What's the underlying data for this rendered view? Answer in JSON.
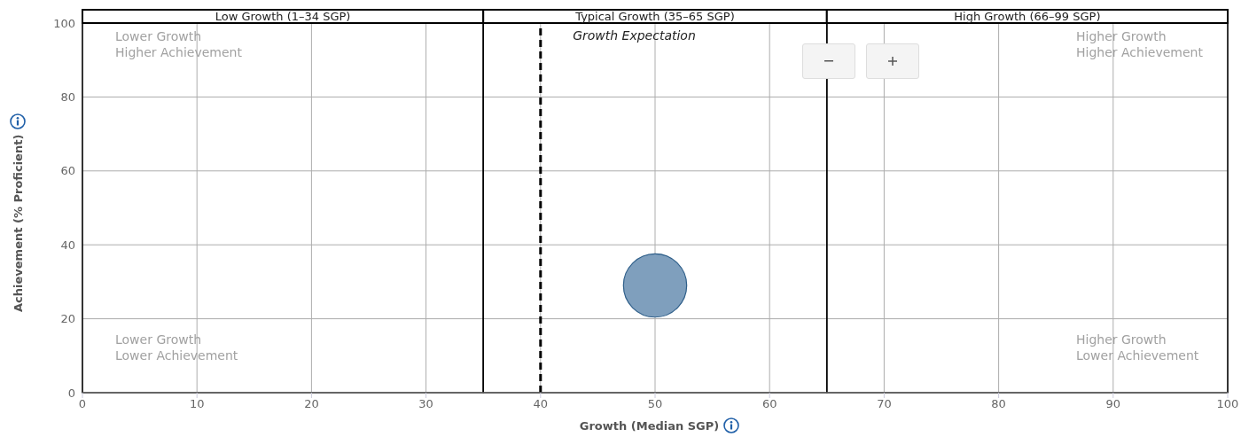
{
  "chart_data": {
    "type": "bubble",
    "xlabel": "Growth (Median SGP)",
    "ylabel": "Achievement (% Proficient)",
    "series": [
      {
        "color": "#7f9fbd",
        "x": [
          50
        ],
        "values": [
          29
        ],
        "sizes": [
          1
        ]
      }
    ],
    "xlim": [
      0,
      100
    ],
    "xticks": [
      0,
      10,
      20,
      30,
      40,
      50,
      60,
      70,
      80,
      90,
      100
    ],
    "ylim": [
      0,
      100
    ],
    "yticks": [
      0,
      20,
      40,
      60,
      80,
      100
    ],
    "grid": true,
    "legend": false,
    "bands": [
      {
        "axis": "x",
        "from": 0,
        "to": 35,
        "label": "Low Growth (1–34 SGP)",
        "color": "#ffffff"
      },
      {
        "axis": "x",
        "from": 35,
        "to": 65,
        "label": "Typical Growth (35–65 SGP)",
        "color": "#ffffff"
      },
      {
        "axis": "x",
        "from": 65,
        "to": 100,
        "label": "High Growth (66–99 SGP)",
        "color": "#ffffff"
      }
    ],
    "ref_lines": [
      {
        "axis": "x",
        "value": 40,
        "label": "Growth Expectation",
        "line_style": "dashed"
      }
    ],
    "annotations": [
      "Lower Growth\nHigher Achievement",
      "Higher Growth\nHigher Achievement",
      "Lower Growth\nLower Achievement",
      "Higher Growth\nLower Achievement"
    ]
  }
}
